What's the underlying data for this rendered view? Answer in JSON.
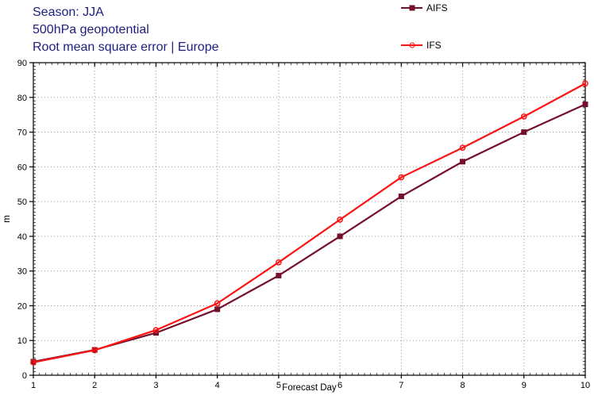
{
  "header": {
    "line1": "Season: JJA",
    "line2": "500hPa geopotential",
    "line3": "Root mean square error | Europe",
    "color": "#1f1f80"
  },
  "legend": {
    "items": [
      {
        "label": "AIFS",
        "marker": "square",
        "color": "#75102c"
      },
      {
        "label": "IFS",
        "marker": "circle-open",
        "color": "#fa1414"
      }
    ]
  },
  "chart_data": {
    "type": "line",
    "title": "Root mean square error | Europe",
    "x": [
      1,
      2,
      3,
      4,
      5,
      6,
      7,
      8,
      9,
      10
    ],
    "series": [
      {
        "name": "AIFS",
        "color": "#75102c",
        "marker": "square",
        "values": [
          3.9,
          7.3,
          12.2,
          19.0,
          28.7,
          40.0,
          51.5,
          61.5,
          70.0,
          78.0
        ]
      },
      {
        "name": "IFS",
        "color": "#fa1414",
        "marker": "circle-open",
        "values": [
          3.7,
          7.2,
          13.0,
          20.7,
          32.5,
          44.8,
          57.0,
          65.5,
          74.5,
          84.0
        ]
      }
    ],
    "xlabel": "Forecast Day",
    "ylabel": "m",
    "xlim": [
      1,
      10
    ],
    "ylim": [
      0,
      90
    ],
    "xticks": [
      1,
      2,
      3,
      4,
      5,
      6,
      7,
      8,
      9,
      10
    ],
    "yticks": [
      0,
      10,
      20,
      30,
      40,
      50,
      60,
      70,
      80,
      90
    ],
    "grid": "dotted",
    "grid_color": "#999999",
    "axis_color": "#000000",
    "legend_position": "outside-top-right"
  }
}
